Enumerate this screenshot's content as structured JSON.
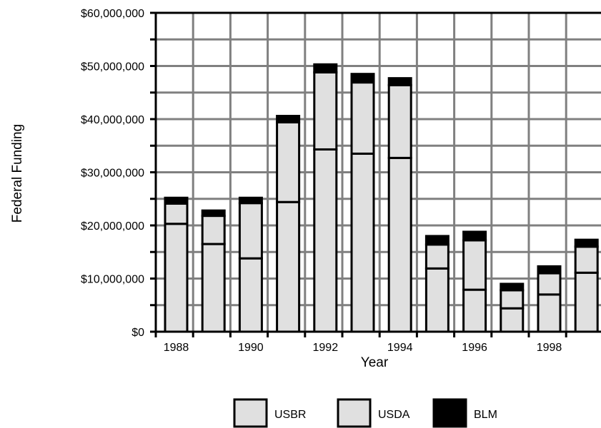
{
  "chart_data": {
    "type": "bar",
    "stacked": true,
    "categories": [
      "1988",
      "1989",
      "1990",
      "1991",
      "1992",
      "1993",
      "1994",
      "1995",
      "1996",
      "1997",
      "1998",
      "1999"
    ],
    "x_tick_labels": [
      "1988",
      "1990",
      "1992",
      "1994",
      "1996",
      "1998"
    ],
    "series": [
      {
        "name": "USBR",
        "color": "#e0e0e0",
        "values": [
          20300000,
          16500000,
          13800000,
          24400000,
          34300000,
          33500000,
          32700000,
          11900000,
          7900000,
          4400000,
          7000000,
          11100000
        ]
      },
      {
        "name": "USDA",
        "color": "#e0e0e0",
        "values": [
          3800000,
          5300000,
          10400000,
          15000000,
          14500000,
          13400000,
          13700000,
          4500000,
          9300000,
          3400000,
          4000000,
          4900000
        ]
      },
      {
        "name": "BLM",
        "color": "#000000",
        "values": [
          1100000,
          1000000,
          1000000,
          1200000,
          1500000,
          1600000,
          1300000,
          1600000,
          1600000,
          1200000,
          1300000,
          1300000
        ]
      }
    ],
    "ylim": [
      0,
      60000000
    ],
    "y_ticks": [
      0,
      10000000,
      20000000,
      30000000,
      40000000,
      50000000,
      60000000
    ],
    "y_tick_labels": [
      "$0",
      "$10,000,000",
      "$20,000,000",
      "$30,000,000",
      "$40,000,000",
      "$50,000,000",
      "$60,000,000"
    ],
    "xlabel": "Year",
    "ylabel": "Federal Funding",
    "grid": true,
    "legend_position": "bottom"
  }
}
